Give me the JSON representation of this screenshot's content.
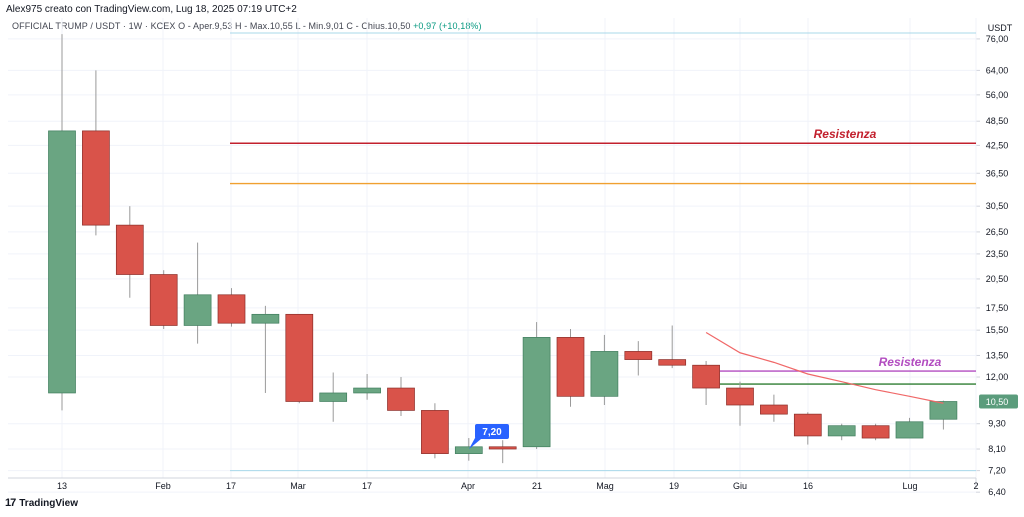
{
  "header": {
    "credit": "Alex975 creato con TradingView.com, Lug 18, 2025 07:19 UTC+2",
    "legend": "OFFICIAL TRUMP / USDT · 1W · KCEX  O - Aper.9,53  H - Max.10,55  L - Min.9,01  C - Chius.10,50",
    "change": "+0,97 (+10,18%)"
  },
  "footer": {
    "logo_mark": "17",
    "logo_text": "TradingView"
  },
  "chart_data": {
    "type": "candlestick",
    "currency_label": "USDT",
    "y_scale": "log",
    "ylim": [
      6.0,
      82.0
    ],
    "y_ticks": [
      "76,00",
      "64,00",
      "56,00",
      "48,50",
      "42,50",
      "36,50",
      "30,50",
      "26,50",
      "23,50",
      "20,50",
      "17,50",
      "15,50",
      "13,50",
      "12,00",
      "9,30",
      "8,10",
      "7,20",
      "6,40"
    ],
    "x_ticks": [
      "13",
      "Feb",
      "17",
      "Mar",
      "17",
      "Apr",
      "21",
      "Mag",
      "19",
      "Giu",
      "16",
      "Lug",
      "2"
    ],
    "candles": [
      {
        "o": 11.0,
        "h": 78.0,
        "l": 10.0,
        "c": 46.0
      },
      {
        "o": 46.0,
        "h": 64.0,
        "l": 26.0,
        "c": 27.5
      },
      {
        "o": 27.5,
        "h": 30.5,
        "l": 18.5,
        "c": 21.0
      },
      {
        "o": 21.0,
        "h": 21.5,
        "l": 15.6,
        "c": 15.9
      },
      {
        "o": 15.9,
        "h": 25.0,
        "l": 14.4,
        "c": 18.8
      },
      {
        "o": 18.8,
        "h": 19.5,
        "l": 15.8,
        "c": 16.1
      },
      {
        "o": 16.1,
        "h": 17.7,
        "l": 11.0,
        "c": 16.9
      },
      {
        "o": 16.9,
        "h": 16.9,
        "l": 10.4,
        "c": 10.5
      },
      {
        "o": 10.5,
        "h": 12.3,
        "l": 9.4,
        "c": 11.0
      },
      {
        "o": 11.0,
        "h": 12.2,
        "l": 10.6,
        "c": 11.3
      },
      {
        "o": 11.3,
        "h": 12.0,
        "l": 9.7,
        "c": 10.0
      },
      {
        "o": 10.0,
        "h": 10.4,
        "l": 7.7,
        "c": 7.9
      },
      {
        "o": 7.9,
        "h": 8.6,
        "l": 7.6,
        "c": 8.2
      },
      {
        "o": 8.2,
        "h": 8.5,
        "l": 7.5,
        "c": 8.1
      },
      {
        "o": 8.2,
        "h": 16.2,
        "l": 8.1,
        "c": 14.9
      },
      {
        "o": 14.9,
        "h": 15.6,
        "l": 10.2,
        "c": 10.8
      },
      {
        "o": 10.8,
        "h": 15.1,
        "l": 10.3,
        "c": 13.8
      },
      {
        "o": 13.8,
        "h": 14.6,
        "l": 12.1,
        "c": 13.2
      },
      {
        "o": 13.2,
        "h": 15.9,
        "l": 12.6,
        "c": 12.8
      },
      {
        "o": 12.8,
        "h": 13.1,
        "l": 10.3,
        "c": 11.3
      },
      {
        "o": 11.3,
        "h": 11.7,
        "l": 9.2,
        "c": 10.3
      },
      {
        "o": 10.3,
        "h": 10.9,
        "l": 9.4,
        "c": 9.8
      },
      {
        "o": 9.8,
        "h": 9.9,
        "l": 8.3,
        "c": 8.7
      },
      {
        "o": 8.7,
        "h": 9.3,
        "l": 8.5,
        "c": 9.2
      },
      {
        "o": 9.2,
        "h": 9.3,
        "l": 8.5,
        "c": 8.6
      },
      {
        "o": 8.6,
        "h": 9.6,
        "l": 8.6,
        "c": 9.4
      },
      {
        "o": 9.53,
        "h": 10.55,
        "l": 9.01,
        "c": 10.5
      }
    ],
    "horizontal_lines": [
      {
        "price": 78.5,
        "color": "#a8d8ea",
        "label": ""
      },
      {
        "price": 43.0,
        "color": "#c2202d",
        "label": "Resistenza"
      },
      {
        "price": 34.5,
        "color": "#f0a030",
        "label": ""
      },
      {
        "price": 12.4,
        "color": "#b24cc0",
        "label": "Resistenza"
      },
      {
        "price": 11.55,
        "color": "#2e7d32",
        "label": ""
      },
      {
        "price": 7.2,
        "color": "#a8d8ea",
        "label": ""
      }
    ],
    "ma_line": [
      [
        19,
        15.3
      ],
      [
        20,
        13.7
      ],
      [
        21,
        13.0
      ],
      [
        22,
        12.2
      ],
      [
        23,
        11.7
      ],
      [
        24,
        11.2
      ],
      [
        25,
        10.8
      ],
      [
        26,
        10.4
      ]
    ],
    "price_marker": {
      "label": "7,20",
      "color": "#2962ff"
    },
    "last_price": {
      "label": "10,50",
      "value": 10.5,
      "color": "#5b9c7c"
    },
    "colors": {
      "up": "#6aa582",
      "down": "#d9534a",
      "wick": "#9a9a9a",
      "grid": "#f0f3fa",
      "ma": "#f06868"
    }
  }
}
